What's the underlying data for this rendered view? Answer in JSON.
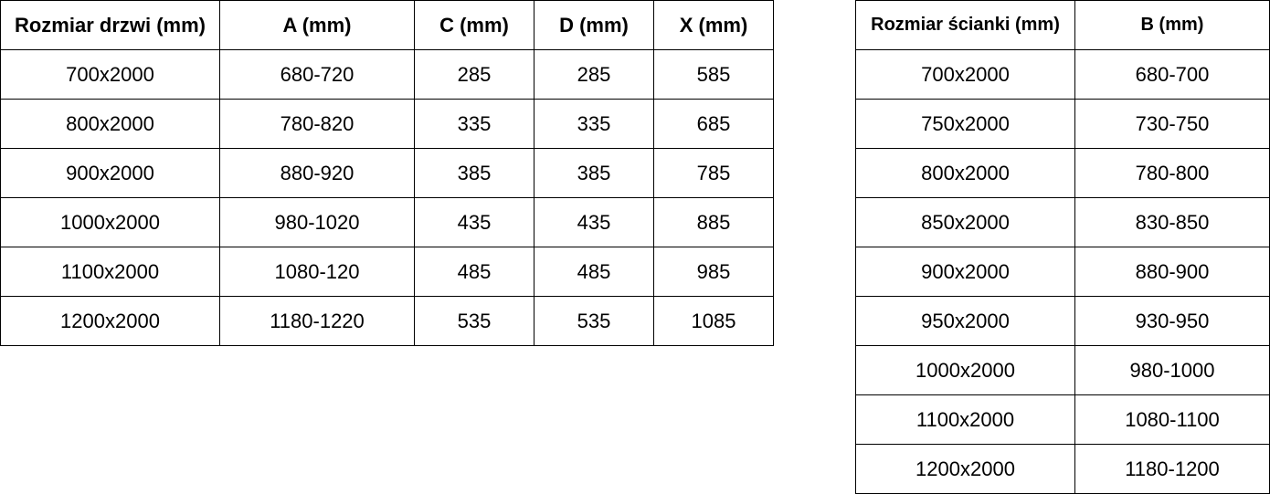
{
  "door_table": {
    "headers": [
      "Rozmiar drzwi (mm)",
      "A (mm)",
      "C (mm)",
      "D (mm)",
      "X (mm)"
    ],
    "rows": [
      [
        "700x2000",
        "680-720",
        "285",
        "285",
        "585"
      ],
      [
        "800x2000",
        "780-820",
        "335",
        "335",
        "685"
      ],
      [
        "900x2000",
        "880-920",
        "385",
        "385",
        "785"
      ],
      [
        "1000x2000",
        "980-1020",
        "435",
        "435",
        "885"
      ],
      [
        "1100x2000",
        "1080-120",
        "485",
        "485",
        "985"
      ],
      [
        "1200x2000",
        "1180-1220",
        "535",
        "535",
        "1085"
      ]
    ]
  },
  "wall_table": {
    "headers": [
      "Rozmiar ścianki (mm)",
      "B (mm)"
    ],
    "rows": [
      [
        "700x2000",
        "680-700"
      ],
      [
        "750x2000",
        "730-750"
      ],
      [
        "800x2000",
        "780-800"
      ],
      [
        "850x2000",
        "830-850"
      ],
      [
        "900x2000",
        "880-900"
      ],
      [
        "950x2000",
        "930-950"
      ],
      [
        "1000x2000",
        "980-1000"
      ],
      [
        "1100x2000",
        "1080-1100"
      ],
      [
        "1200x2000",
        "1180-1200"
      ]
    ]
  }
}
